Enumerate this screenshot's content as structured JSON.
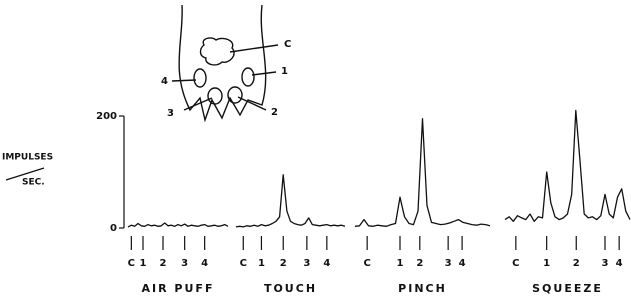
{
  "diagram": {
    "labels": [
      "C",
      "1",
      "2",
      "3",
      "4"
    ]
  },
  "ylabel": {
    "top": "IMPULSES",
    "bottom": "SEC."
  },
  "chart_data": [
    {
      "type": "line",
      "title": "AIR PUFF",
      "ylim": [
        0,
        200
      ],
      "yticks": [
        0,
        200
      ],
      "xlim": [
        0,
        30
      ],
      "x": [
        0,
        1,
        2,
        3,
        4,
        5,
        6,
        7,
        8,
        9,
        10,
        11,
        12,
        13,
        14,
        15,
        16,
        17,
        18,
        19,
        20,
        21,
        22,
        23,
        24,
        25,
        26,
        27,
        28,
        29,
        30
      ],
      "values": [
        2,
        5,
        3,
        8,
        4,
        3,
        6,
        4,
        5,
        3,
        4,
        9,
        4,
        5,
        3,
        6,
        4,
        7,
        3,
        5,
        4,
        3,
        5,
        6,
        3,
        4,
        5,
        3,
        4,
        6,
        3
      ],
      "markers": [
        {
          "label": "C",
          "x": 1
        },
        {
          "label": "1",
          "x": 4.5
        },
        {
          "label": "2",
          "x": 10.5
        },
        {
          "label": "3",
          "x": 17
        },
        {
          "label": "4",
          "x": 23
        }
      ]
    },
    {
      "type": "line",
      "title": "TOUCH",
      "ylim": [
        0,
        200
      ],
      "xlim": [
        0,
        30
      ],
      "x": [
        0,
        1,
        2,
        3,
        4,
        5,
        6,
        7,
        8,
        9,
        10,
        11,
        12,
        13,
        14,
        15,
        16,
        17,
        18,
        19,
        20,
        21,
        22,
        23,
        24,
        25,
        26,
        27,
        28,
        29,
        30
      ],
      "values": [
        2,
        3,
        2,
        4,
        3,
        5,
        3,
        6,
        4,
        5,
        8,
        12,
        20,
        95,
        30,
        12,
        8,
        6,
        5,
        8,
        18,
        6,
        5,
        4,
        5,
        6,
        4,
        5,
        4,
        5,
        3
      ],
      "markers": [
        {
          "label": "C",
          "x": 2
        },
        {
          "label": "1",
          "x": 7
        },
        {
          "label": "2",
          "x": 13
        },
        {
          "label": "3",
          "x": 19.5
        },
        {
          "label": "4",
          "x": 25
        }
      ]
    },
    {
      "type": "line",
      "title": "PINCH",
      "ylim": [
        0,
        200
      ],
      "xlim": [
        0,
        30
      ],
      "x": [
        0,
        1,
        2,
        3,
        4,
        5,
        6,
        7,
        8,
        9,
        10,
        11,
        12,
        13,
        14,
        15,
        16,
        17,
        18,
        19,
        20,
        21,
        22,
        23,
        24,
        25,
        26,
        27,
        28,
        29,
        30
      ],
      "values": [
        3,
        4,
        15,
        4,
        3,
        5,
        4,
        3,
        6,
        8,
        55,
        20,
        8,
        6,
        30,
        195,
        40,
        10,
        8,
        6,
        7,
        9,
        12,
        15,
        10,
        8,
        6,
        5,
        7,
        6,
        4
      ],
      "markers": [
        {
          "label": "C",
          "x": 2.7
        },
        {
          "label": "1",
          "x": 10
        },
        {
          "label": "2",
          "x": 14.4
        },
        {
          "label": "3",
          "x": 20.7
        },
        {
          "label": "4",
          "x": 23.8
        }
      ]
    },
    {
      "type": "line",
      "title": "SQUEEZE",
      "ylim": [
        0,
        200
      ],
      "xlim": [
        0,
        30
      ],
      "x": [
        0,
        1,
        2,
        3,
        4,
        5,
        6,
        7,
        8,
        9,
        10,
        11,
        12,
        13,
        14,
        15,
        16,
        17,
        18,
        19,
        20,
        21,
        22,
        23,
        24,
        25,
        26,
        27,
        28,
        29,
        30
      ],
      "values": [
        15,
        20,
        12,
        22,
        18,
        15,
        25,
        12,
        20,
        18,
        100,
        45,
        20,
        15,
        18,
        25,
        60,
        210,
        120,
        25,
        18,
        20,
        15,
        22,
        60,
        25,
        18,
        55,
        70,
        30,
        15
      ],
      "markers": [
        {
          "label": "C",
          "x": 2.6
        },
        {
          "label": "1",
          "x": 10
        },
        {
          "label": "2",
          "x": 17.1
        },
        {
          "label": "3",
          "x": 24
        },
        {
          "label": "4",
          "x": 27.4
        }
      ]
    }
  ]
}
